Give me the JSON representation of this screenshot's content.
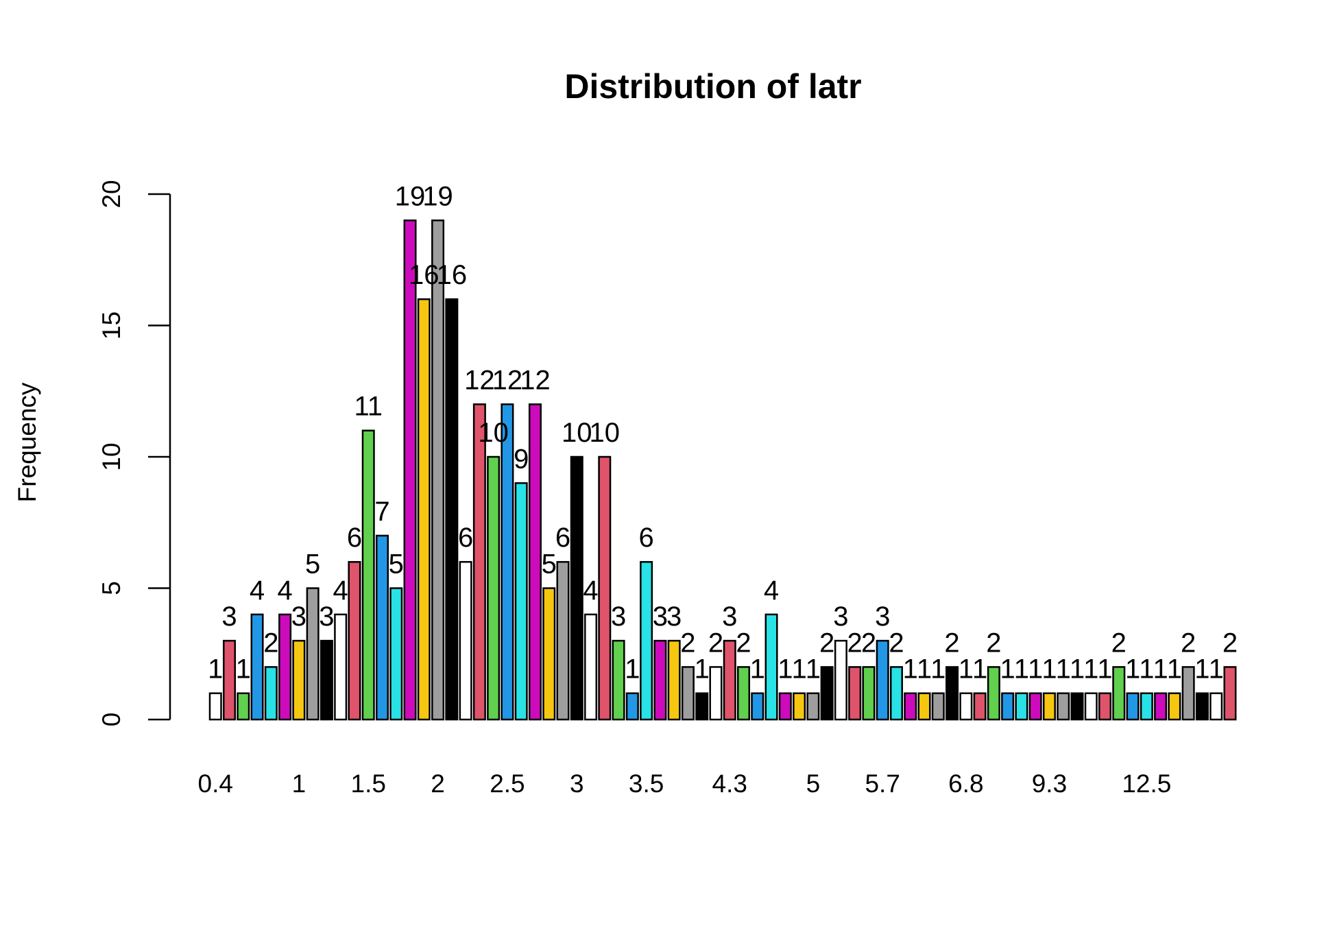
{
  "chart_data": {
    "type": "bar",
    "title": "Distribution of latr",
    "xlabel": "",
    "ylabel": "Frequency",
    "ylim": [
      0,
      20
    ],
    "yticks": [
      0,
      5,
      10,
      15,
      20
    ],
    "x_tick_labels": [
      "0.4",
      "1",
      "1.5",
      "2",
      "2.5",
      "3",
      "3.5",
      "4.3",
      "5",
      "5.7",
      "6.8",
      "9.3",
      "12.5"
    ],
    "x_tick_bar_index": [
      0,
      6,
      11,
      16,
      21,
      26,
      31,
      37,
      43,
      48,
      54,
      60,
      67
    ],
    "palette": [
      "#FFFFFF",
      "#DF536B",
      "#61D04F",
      "#2297E6",
      "#28E2E5",
      "#CD0BBC",
      "#F5C710",
      "#9E9E9E",
      "#000000"
    ],
    "values": [
      1,
      3,
      1,
      4,
      2,
      4,
      3,
      5,
      3,
      4,
      6,
      11,
      7,
      5,
      19,
      16,
      19,
      16,
      6,
      12,
      10,
      12,
      9,
      12,
      5,
      6,
      10,
      4,
      10,
      3,
      1,
      6,
      3,
      3,
      2,
      1,
      2,
      3,
      2,
      1,
      4,
      1,
      1,
      1,
      2,
      3,
      2,
      2,
      3,
      2,
      1,
      1,
      1,
      2,
      1,
      1,
      2,
      1,
      1,
      1,
      1,
      1,
      1,
      1,
      1,
      2,
      1,
      1,
      1,
      1,
      2,
      1,
      1,
      2
    ]
  }
}
